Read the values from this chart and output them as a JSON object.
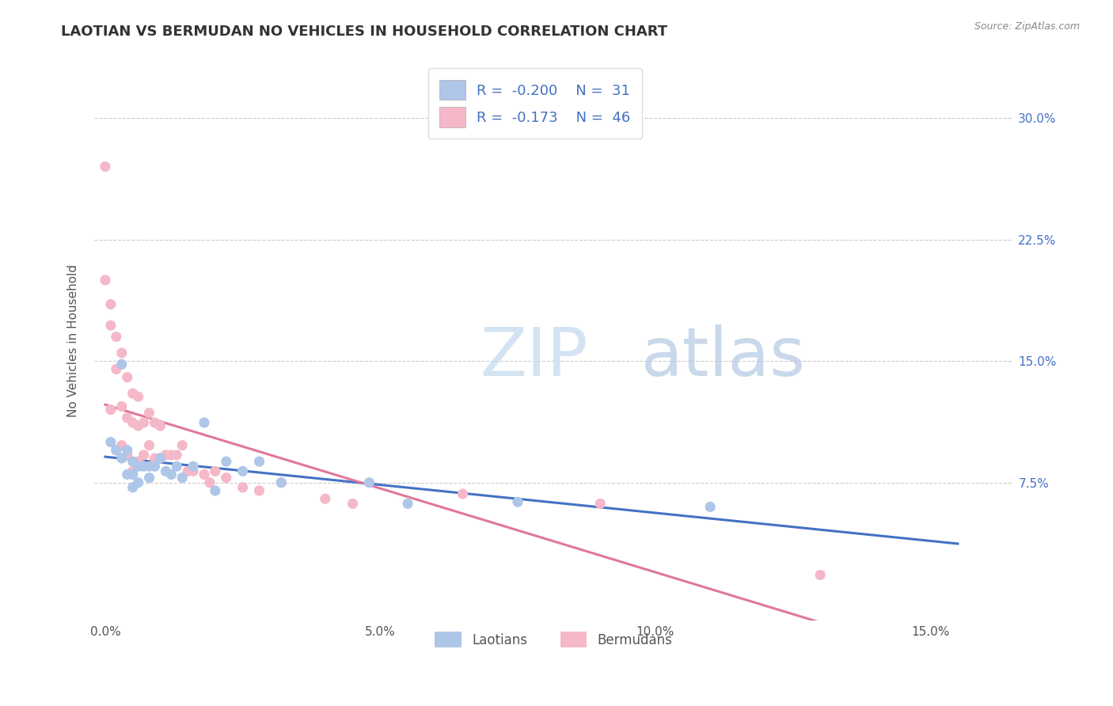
{
  "title": "LAOTIAN VS BERMUDAN NO VEHICLES IN HOUSEHOLD CORRELATION CHART",
  "source": "Source: ZipAtlas.com",
  "xlim": [
    -0.002,
    0.165
  ],
  "ylim": [
    -0.01,
    0.335
  ],
  "x_ticks": [
    0.0,
    0.05,
    0.1,
    0.15
  ],
  "x_tick_labels": [
    "0.0%",
    "5.0%",
    "10.0%",
    "15.0%"
  ],
  "y_ticks": [
    0.075,
    0.15,
    0.225,
    0.3
  ],
  "y_tick_labels": [
    "7.5%",
    "15.0%",
    "22.5%",
    "30.0%"
  ],
  "laotian_color": "#aec6e8",
  "bermudan_color": "#f5b8c8",
  "laotian_line_color": "#4472c4",
  "bermudan_line_color": "#e07898",
  "legend_text_color": "#4472c4",
  "laotian_R": -0.2,
  "laotian_N": 31,
  "bermudan_R": -0.173,
  "bermudan_N": 46,
  "laotian_x": [
    0.001,
    0.002,
    0.003,
    0.003,
    0.004,
    0.004,
    0.005,
    0.005,
    0.005,
    0.006,
    0.006,
    0.007,
    0.008,
    0.008,
    0.009,
    0.01,
    0.011,
    0.012,
    0.013,
    0.014,
    0.016,
    0.018,
    0.02,
    0.022,
    0.025,
    0.028,
    0.032,
    0.048,
    0.055,
    0.075,
    0.11
  ],
  "laotian_y": [
    0.1,
    0.095,
    0.09,
    0.148,
    0.095,
    0.08,
    0.088,
    0.08,
    0.072,
    0.085,
    0.075,
    0.085,
    0.085,
    0.078,
    0.085,
    0.09,
    0.082,
    0.08,
    0.085,
    0.078,
    0.085,
    0.112,
    0.07,
    0.088,
    0.082,
    0.088,
    0.075,
    0.075,
    0.062,
    0.063,
    0.06
  ],
  "bermudan_x": [
    0.0,
    0.0,
    0.001,
    0.001,
    0.001,
    0.002,
    0.002,
    0.002,
    0.003,
    0.003,
    0.003,
    0.004,
    0.004,
    0.004,
    0.005,
    0.005,
    0.005,
    0.006,
    0.006,
    0.006,
    0.007,
    0.007,
    0.008,
    0.008,
    0.009,
    0.009,
    0.01,
    0.01,
    0.011,
    0.012,
    0.013,
    0.014,
    0.015,
    0.016,
    0.018,
    0.019,
    0.02,
    0.022,
    0.025,
    0.028,
    0.032,
    0.04,
    0.045,
    0.065,
    0.09,
    0.13
  ],
  "bermudan_y": [
    0.27,
    0.2,
    0.185,
    0.172,
    0.12,
    0.165,
    0.145,
    0.095,
    0.155,
    0.122,
    0.098,
    0.14,
    0.115,
    0.092,
    0.13,
    0.112,
    0.082,
    0.128,
    0.11,
    0.088,
    0.112,
    0.092,
    0.118,
    0.098,
    0.112,
    0.09,
    0.11,
    0.09,
    0.092,
    0.092,
    0.092,
    0.098,
    0.082,
    0.082,
    0.08,
    0.075,
    0.082,
    0.078,
    0.072,
    0.07,
    0.075,
    0.065,
    0.062,
    0.068,
    0.062,
    0.018
  ],
  "background_color": "#ffffff",
  "grid_color": "#cccccc",
  "watermark_zip_color": "#ccdff0",
  "watermark_atlas_color": "#b8cce4"
}
